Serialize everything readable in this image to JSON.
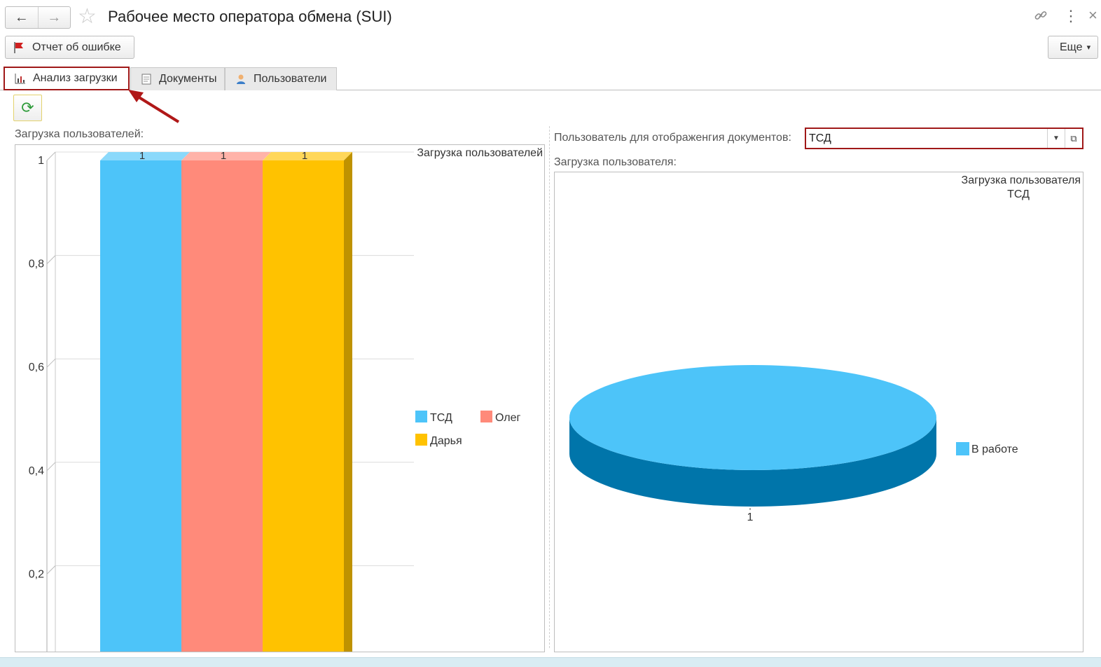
{
  "window": {
    "title": "Рабочее место оператора обмена (SUI)",
    "back_icon": "←",
    "forward_icon": "→",
    "star_icon": "☆",
    "link_icon": "🔗",
    "menu_icon": "⋮",
    "close_icon": "×"
  },
  "toolbar": {
    "error_report_label": "Отчет об ошибке",
    "more_label": "Еще",
    "more_arrow": "▾"
  },
  "tabs": [
    {
      "label": "Анализ загрузки",
      "active": true,
      "icon": "chart-icon"
    },
    {
      "label": "Документы",
      "active": false,
      "icon": "document-icon"
    },
    {
      "label": "Пользователи",
      "active": false,
      "icon": "user-icon"
    }
  ],
  "refresh_icon": "⟳",
  "left_panel": {
    "caption": "Загрузка пользователей:"
  },
  "right_panel": {
    "user_field_label": "Пользователь для отображенгия документов:",
    "user_field_value": "ТСД",
    "caption": "Загрузка пользователя:"
  },
  "colors": {
    "accent_red": "#a01818",
    "tsd": "#4dc4f9",
    "oleg": "#ff8a7a",
    "darya": "#ffc200",
    "pie_side": "#0075aa"
  },
  "chart_data": [
    {
      "type": "bar",
      "title": "Загрузка пользователей",
      "categories": [
        ""
      ],
      "series": [
        {
          "name": "ТСД",
          "values": [
            1
          ],
          "color": "#4dc4f9"
        },
        {
          "name": "Олег",
          "values": [
            1
          ],
          "color": "#ff8a7a"
        },
        {
          "name": "Дарья",
          "values": [
            1
          ],
          "color": "#ffc200"
        }
      ],
      "yticks": [
        "0,2",
        "0,4",
        "0,6",
        "0,8",
        "1"
      ],
      "ytick_values": [
        0.2,
        0.4,
        0.6,
        0.8,
        1
      ],
      "ylim": [
        0,
        1
      ],
      "data_labels": [
        "1",
        "1",
        "1"
      ],
      "grid": true,
      "legend": "right",
      "style": "3d"
    },
    {
      "type": "pie",
      "title": "Загрузка пользователя",
      "subtitle": "ТСД",
      "slices": [
        {
          "name": "В работе",
          "value": 1,
          "color": "#4dc4f9"
        }
      ],
      "data_labels": [
        "1"
      ],
      "legend": "right",
      "style": "3d"
    }
  ]
}
